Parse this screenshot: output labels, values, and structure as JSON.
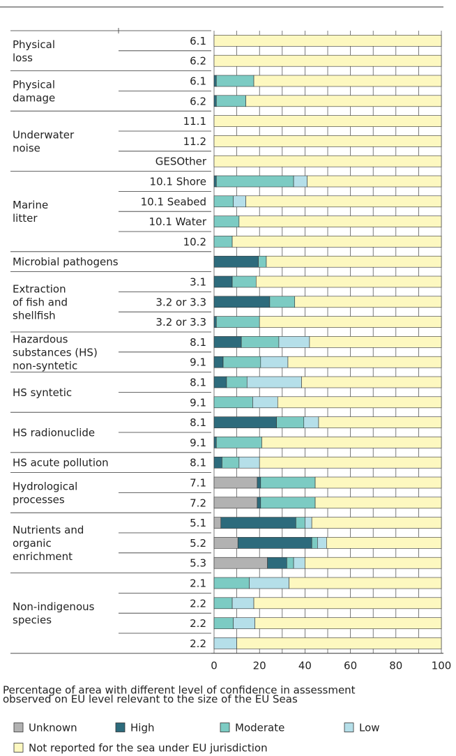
{
  "chart_data": {
    "type": "stacked-barh",
    "groups": [
      {
        "label": [
          "Physical",
          "loss"
        ],
        "categories": [
          "6.1",
          "6.2"
        ]
      },
      {
        "label": [
          "Physical",
          "damage"
        ],
        "categories": [
          "6.1",
          "6.2"
        ]
      },
      {
        "label": [
          "Underwater",
          "noise"
        ],
        "categories": [
          "11.1",
          "11.2",
          "GESOther"
        ]
      },
      {
        "label": [
          "Marine",
          "litter"
        ],
        "categories": [
          "10.1 Shore",
          "10.1 Seabed",
          "10.1 Water",
          "10.2"
        ]
      },
      {
        "label": [
          "Microbial pathogens"
        ],
        "categories": [
          null
        ]
      },
      {
        "label": [
          "Extraction",
          "of fish and",
          "shellfish"
        ],
        "categories": [
          "3.1",
          "3.2 or 3.3",
          "3.2 or 3.3"
        ]
      },
      {
        "label": [
          "Hazardous",
          "substances (HS)",
          "non-syntetic"
        ],
        "categories": [
          "8.1",
          "9.1"
        ]
      },
      {
        "label": [
          "HS syntetic"
        ],
        "categories": [
          "8.1",
          "9.1"
        ]
      },
      {
        "label": [
          "HS radionuclide"
        ],
        "categories": [
          "8.1",
          "9.1"
        ]
      },
      {
        "label": [
          "HS acute pollution"
        ],
        "categories": [
          "8.1"
        ]
      },
      {
        "label": [
          "Hydrological",
          "processes"
        ],
        "categories": [
          "7.1",
          "7.2"
        ]
      },
      {
        "label": [
          "Nutrients and",
          "organic",
          "enrichment"
        ],
        "categories": [
          "5.1",
          "5.2",
          "5.3"
        ]
      },
      {
        "label": [
          "Non-indigenous",
          "species"
        ],
        "categories": [
          "2.1",
          "2.2",
          "2.2",
          "2.2"
        ]
      }
    ],
    "series": [
      {
        "name": "Unknown",
        "color": "#b2b2b2",
        "values": [
          0,
          0,
          0,
          0,
          0,
          0,
          0,
          0,
          0,
          0,
          0,
          0,
          0,
          0,
          0,
          0,
          0,
          0,
          0,
          0,
          0,
          0,
          19,
          19,
          3,
          10.5,
          23.5,
          0,
          0,
          0,
          0
        ]
      },
      {
        "name": "High",
        "color": "#2d6b7c",
        "values": [
          0,
          0,
          1,
          1,
          0,
          0,
          0,
          1,
          0,
          0,
          0,
          19.5,
          8,
          24.5,
          1,
          12,
          4,
          5.5,
          0,
          27.5,
          1,
          3.5,
          1.5,
          1.5,
          33,
          32.5,
          8.5,
          0,
          0,
          0,
          0
        ]
      },
      {
        "name": "Moderate",
        "color": "#7ccbc3",
        "values": [
          0,
          0,
          16.5,
          13,
          0,
          0,
          0,
          34,
          8.5,
          11,
          8,
          3.5,
          10.5,
          11,
          19,
          16.5,
          16.5,
          9,
          17,
          12,
          20,
          7.5,
          24,
          24,
          4,
          2.5,
          3,
          15.5,
          8,
          8.5,
          0
        ]
      },
      {
        "name": "Low",
        "color": "#b5dfe9",
        "values": [
          0,
          0,
          0,
          0,
          0,
          0,
          0,
          6,
          5.5,
          0,
          0,
          0,
          0,
          0,
          0,
          13.5,
          12,
          24,
          11,
          6.5,
          0,
          9,
          0,
          0,
          3,
          4,
          5,
          17.5,
          9.5,
          9.5,
          10
        ]
      },
      {
        "name": "Not reported for the sea under EU jurisdiction",
        "color": "#fdf8c0",
        "values": [
          100,
          100,
          82.5,
          86,
          100,
          100,
          100,
          59,
          86,
          89,
          92,
          77,
          81.5,
          64.5,
          80,
          58,
          67.5,
          61.5,
          72,
          54,
          79,
          80,
          55.5,
          55.5,
          57,
          50.5,
          60,
          67,
          82.5,
          82,
          90
        ]
      }
    ],
    "xlim": [
      0,
      100
    ],
    "xticks": [
      0,
      20,
      40,
      60,
      80,
      100
    ],
    "xminorticks": [
      10,
      30,
      50,
      70,
      90
    ],
    "xlabel": [
      "Percentage of area with different level of confidence in assessment",
      "observed on EU level relevant to the size of the EU Seas"
    ]
  }
}
